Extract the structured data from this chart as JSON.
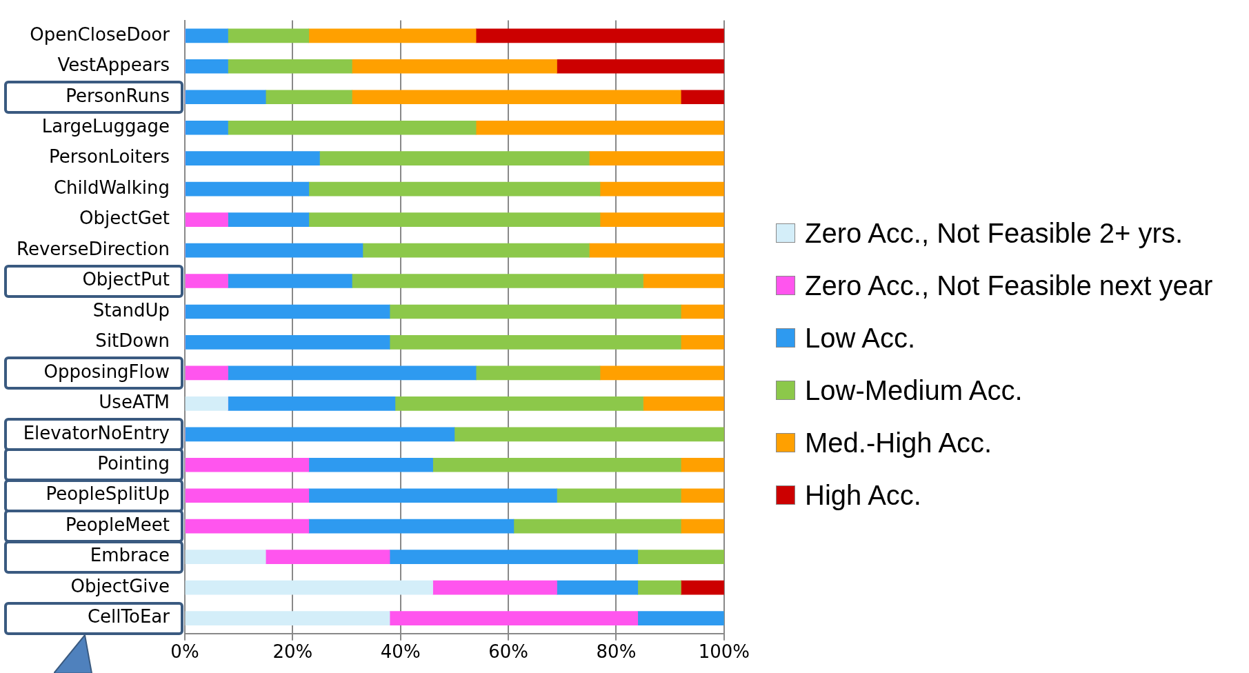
{
  "chart_data": {
    "type": "bar",
    "orientation": "horizontal",
    "stacked": true,
    "categories": [
      "OpenCloseDoor",
      "VestAppears",
      "PersonRuns",
      "LargeLuggage",
      "PersonLoiters",
      "ChildWalking",
      "ObjectGet",
      "ReverseDirection",
      "ObjectPut",
      "StandUp",
      "SitDown",
      "OpposingFlow",
      "UseATM",
      "ElevatorNoEntry",
      "Pointing",
      "PeopleSplitUp",
      "PeopleMeet",
      "Embrace",
      "ObjectGive",
      "CellToEar"
    ],
    "series": [
      {
        "name": "Zero Acc., Not Feasible 2+ yrs.",
        "color": "#d4eef9",
        "values": [
          0,
          0,
          0,
          0,
          0,
          0,
          0,
          0,
          0,
          0,
          0,
          0,
          8,
          0,
          0,
          0,
          0,
          15,
          46,
          38
        ]
      },
      {
        "name": "Zero Acc., Not Feasible next year",
        "color": "#ff55ee",
        "values": [
          0,
          0,
          0,
          0,
          0,
          0,
          8,
          0,
          8,
          0,
          0,
          8,
          0,
          0,
          23,
          23,
          23,
          23,
          23,
          46
        ]
      },
      {
        "name": "Low Acc.",
        "color": "#2e9af0",
        "values": [
          8,
          8,
          15,
          8,
          25,
          23,
          15,
          33,
          23,
          38,
          38,
          46,
          31,
          50,
          23,
          46,
          38,
          46,
          15,
          16
        ]
      },
      {
        "name": "Low-Medium Acc.",
        "color": "#8cc84a",
        "values": [
          15,
          23,
          16,
          46,
          50,
          54,
          54,
          42,
          54,
          54,
          54,
          23,
          46,
          50,
          46,
          23,
          31,
          16,
          8,
          0
        ]
      },
      {
        "name": "Med.-High Acc.",
        "color": "#ffa000",
        "values": [
          31,
          38,
          61,
          46,
          25,
          23,
          23,
          25,
          15,
          8,
          8,
          23,
          15,
          0,
          8,
          8,
          8,
          0,
          0,
          0
        ]
      },
      {
        "name": "High Acc.",
        "color": "#cc0000",
        "values": [
          46,
          31,
          8,
          0,
          0,
          0,
          0,
          0,
          0,
          0,
          0,
          0,
          0,
          0,
          0,
          0,
          0,
          0,
          8,
          0
        ]
      }
    ],
    "xlim": [
      0,
      100
    ],
    "xticks": [
      {
        "value": 0,
        "label": "0%"
      },
      {
        "value": 20,
        "label": "20%"
      },
      {
        "value": 40,
        "label": "40%"
      },
      {
        "value": 60,
        "label": "60%"
      },
      {
        "value": 80,
        "label": "80%"
      },
      {
        "value": 100,
        "label": "100%"
      }
    ],
    "grid": "x",
    "legend": "right"
  }
}
